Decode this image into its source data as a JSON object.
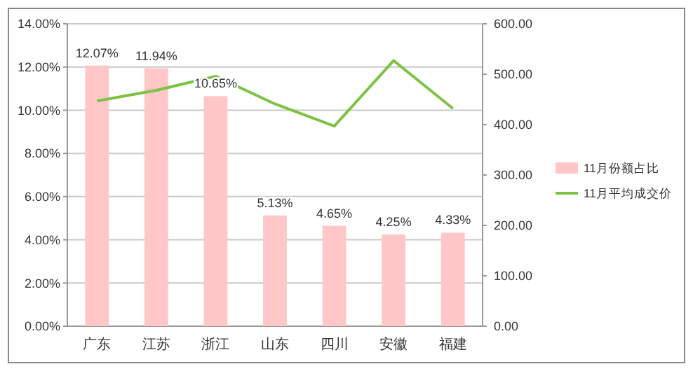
{
  "chart_data": {
    "type": "bar",
    "categories": [
      "广东",
      "江苏",
      "浙江",
      "山东",
      "四川",
      "安徽",
      "福建"
    ],
    "series": [
      {
        "name": "11月份额占比",
        "color": "#ffc7c7",
        "values": [
          12.07,
          11.94,
          10.65,
          5.13,
          4.65,
          4.25,
          4.33
        ],
        "value_labels": [
          "12.07%",
          "11.94%",
          "10.65%",
          "5.13%",
          "4.65%",
          "4.25%",
          "4.33%"
        ]
      },
      {
        "name": "11月平均成交价",
        "type": "line",
        "axis": "y2",
        "color": "#7dc242",
        "values": [
          447,
          468,
          496,
          441,
          397,
          527,
          432
        ]
      }
    ],
    "ylim": [
      0,
      14
    ],
    "yticks": [
      {
        "value": 0,
        "label": "0.00%"
      },
      {
        "value": 2,
        "label": "2.00%"
      },
      {
        "value": 4,
        "label": "4.00%"
      },
      {
        "value": 6,
        "label": "6.00%"
      },
      {
        "value": 8,
        "label": "8.00%"
      },
      {
        "value": 10,
        "label": "10.00%"
      },
      {
        "value": 12,
        "label": "12.00%"
      },
      {
        "value": 14,
        "label": "14.00%"
      }
    ],
    "y2lim": [
      0,
      600
    ],
    "y2ticks": [
      {
        "value": 0,
        "label": "0.00"
      },
      {
        "value": 100,
        "label": "100.00"
      },
      {
        "value": 200,
        "label": "200.00"
      },
      {
        "value": 300,
        "label": "300.00"
      },
      {
        "value": 400,
        "label": "400.00"
      },
      {
        "value": 500,
        "label": "500.00"
      },
      {
        "value": 600,
        "label": "600.00"
      }
    ],
    "grid": "y",
    "legend": "right",
    "marker": "none",
    "line_style": "solid"
  }
}
